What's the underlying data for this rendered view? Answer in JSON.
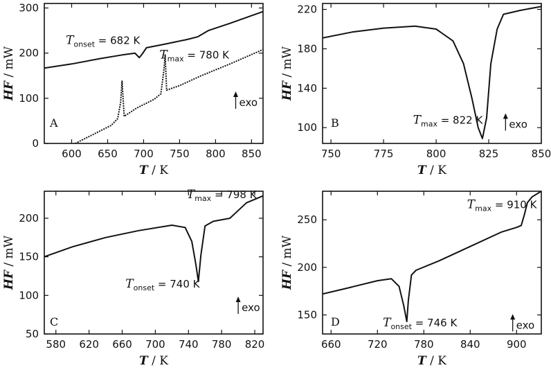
{
  "chart_data": [
    {
      "type": "line",
      "panel_label": "A",
      "xlabel": "T / K",
      "ylabel": "HF / mW",
      "xlim": [
        562,
        866
      ],
      "ylim": [
        0,
        310
      ],
      "xticks": [
        600,
        650,
        700,
        750,
        800,
        850
      ],
      "yticks": [
        0,
        100,
        200,
        300
      ],
      "annotations": [
        {
          "T": "T",
          "sub": "onset",
          "rest": " = 682 K",
          "x": 592,
          "y": 220
        },
        {
          "T": "T",
          "sub": "max",
          "rest": " = 780 K",
          "x": 722,
          "y": 188
        },
        {
          "exo": "exo",
          "x": 828,
          "y": 92
        }
      ],
      "series": [
        {
          "style": "solid",
          "x": [
            562,
            600,
            640,
            670,
            688,
            694,
            698,
            704,
            730,
            760,
            775,
            790,
            820,
            850,
            866
          ],
          "y": [
            167,
            176,
            188,
            196,
            200,
            190,
            198,
            212,
            220,
            230,
            236,
            250,
            266,
            283,
            292
          ]
        },
        {
          "style": "dotted",
          "x": [
            605,
            630,
            655,
            664,
            668,
            670,
            673,
            690,
            715,
            724,
            728,
            730,
            732,
            750,
            780,
            820,
            866
          ],
          "y": [
            0,
            20,
            40,
            55,
            90,
            138,
            60,
            78,
            98,
            110,
            160,
            196,
            118,
            128,
            150,
            176,
            208
          ]
        }
      ]
    },
    {
      "type": "line",
      "panel_label": "B",
      "xlabel": "T / K",
      "ylabel": "HF / mW",
      "xlim": [
        746,
        850
      ],
      "ylim": [
        84,
        226
      ],
      "xticks": [
        750,
        775,
        800,
        825,
        850
      ],
      "yticks": [
        100,
        140,
        180,
        220
      ],
      "annotations": [
        {
          "T": "T",
          "sub": "max",
          "rest": " = 822 K",
          "x": 789,
          "y": 104
        },
        {
          "exo": "exo",
          "x": 833,
          "y": 104
        }
      ],
      "series": [
        {
          "style": "solid",
          "x": [
            746,
            760,
            775,
            790,
            800,
            808,
            813,
            817,
            820,
            822,
            824,
            826,
            829,
            832,
            840,
            850
          ],
          "y": [
            191,
            197,
            201,
            203,
            200,
            188,
            165,
            130,
            100,
            89,
            110,
            165,
            200,
            215,
            219,
            223
          ]
        }
      ]
    },
    {
      "type": "line",
      "panel_label": "C",
      "xlabel": "T / K",
      "ylabel": "HF / mW",
      "xlim": [
        566,
        830
      ],
      "ylim": [
        50,
        235
      ],
      "xticks": [
        580,
        620,
        660,
        700,
        740,
        780,
        820
      ],
      "yticks": [
        50,
        100,
        150,
        200
      ],
      "annotations": [
        {
          "T": "T",
          "sub": "max",
          "rest": " = 798 K",
          "x": 738,
          "y": 226
        },
        {
          "T": "T",
          "sub": "onset",
          "rest": " = 740 K",
          "x": 664,
          "y": 110
        },
        {
          "exo": "exo",
          "x": 800,
          "y": 85
        }
      ],
      "series": [
        {
          "style": "solid",
          "x": [
            566,
            600,
            640,
            680,
            720,
            736,
            744,
            749,
            752,
            755,
            760,
            770,
            790,
            800,
            810,
            830
          ],
          "y": [
            150,
            163,
            175,
            184,
            191,
            188,
            170,
            140,
            118,
            152,
            190,
            196,
            200,
            210,
            220,
            229
          ]
        }
      ]
    },
    {
      "type": "line",
      "panel_label": "D",
      "xlabel": "T / K",
      "ylabel": "HF / mW",
      "xlim": [
        649,
        932
      ],
      "ylim": [
        130,
        280
      ],
      "xticks": [
        660,
        720,
        780,
        840,
        900
      ],
      "yticks": [
        150,
        200,
        250
      ],
      "annotations": [
        {
          "T": "T",
          "sub": "max",
          "rest": " = 910 K",
          "x": 836,
          "y": 262
        },
        {
          "T": "T",
          "sub": "onset",
          "rest": " = 746 K",
          "x": 727,
          "y": 138
        },
        {
          "exo": "exo",
          "x": 895,
          "y": 140
        }
      ],
      "series": [
        {
          "style": "solid",
          "x": [
            649,
            680,
            720,
            738,
            748,
            754,
            758,
            760,
            764,
            770,
            800,
            840,
            880,
            900,
            906,
            910,
            914,
            920,
            932
          ],
          "y": [
            172,
            178,
            186,
            188,
            180,
            160,
            143,
            165,
            192,
            197,
            207,
            222,
            237,
            242,
            244,
            255,
            268,
            274,
            280
          ]
        }
      ]
    }
  ]
}
